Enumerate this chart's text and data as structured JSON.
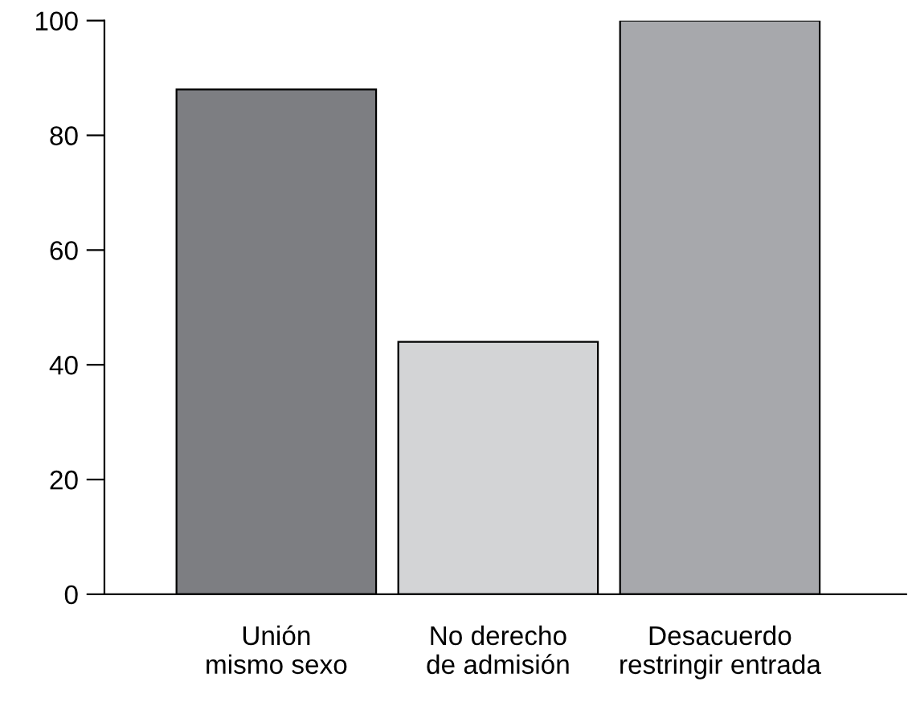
{
  "chart_data": {
    "type": "bar",
    "categories": [
      "Unión\nmismo sexo",
      "No derecho\nde admisión",
      "Desacuerdo\nrestringir entrada"
    ],
    "values": [
      88,
      44,
      100
    ],
    "colors": [
      "#7d7e82",
      "#d3d4d6",
      "#a7a8ac"
    ],
    "ylim": [
      0,
      100
    ],
    "yticks": [
      0,
      20,
      40,
      60,
      80,
      100
    ],
    "grid": false,
    "legend": false
  }
}
